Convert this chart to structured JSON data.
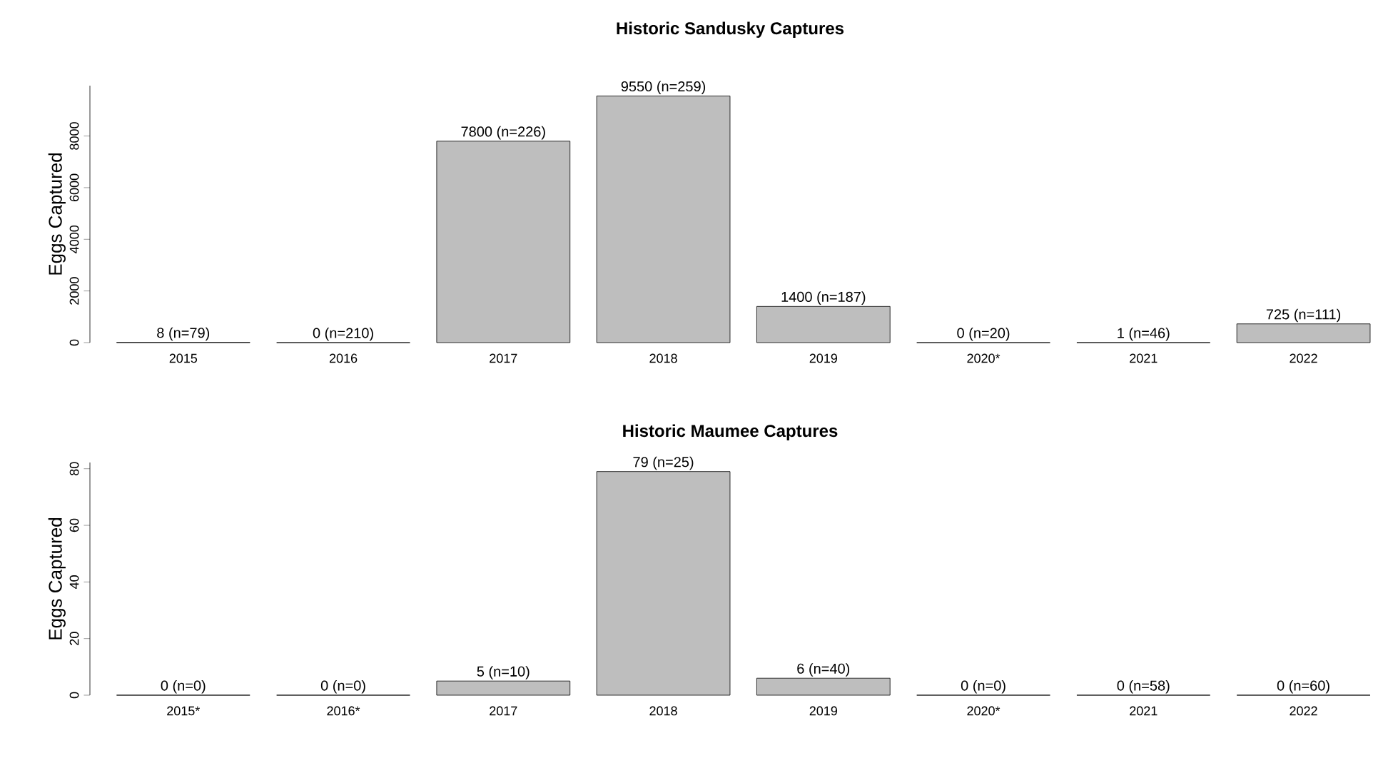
{
  "chart_data": [
    {
      "type": "bar",
      "title": "Historic Sandusky Captures",
      "ylabel": "Eggs Captured",
      "color": "#bebebe",
      "categories": [
        "2015",
        "2016",
        "2017",
        "2018",
        "2019",
        "2020*",
        "2021",
        "2022"
      ],
      "values": [
        8,
        0,
        7800,
        9550,
        1400,
        0,
        1,
        725
      ],
      "value_labels": [
        "8   (n=79)",
        "0   (n=210)",
        "7800  (n=226)",
        "9550  (n=259)",
        "1400 (n=187)",
        "0   (n=20)",
        "1   (n=46)",
        "725  (n=111)"
      ],
      "ylim": [
        0,
        9950
      ],
      "yticks": [
        0,
        2000,
        4000,
        6000,
        8000
      ]
    },
    {
      "type": "bar",
      "title": "Historic Maumee Captures",
      "ylabel": "Eggs Captured",
      "color": "#bebebe",
      "categories": [
        "2015*",
        "2016*",
        "2017",
        "2018",
        "2019",
        "2020*",
        "2021",
        "2022"
      ],
      "values": [
        0,
        0,
        5,
        79,
        6,
        0,
        0,
        0
      ],
      "value_labels": [
        "0   (n=0)",
        "0 (n=0)",
        "5  (n=10)",
        "79 (n=25)",
        "6   (n=40)",
        "0 (n=0)",
        "0  (n=58)",
        "0  (n=60)"
      ],
      "ylim": [
        0,
        82.2
      ],
      "yticks": [
        0,
        20,
        40,
        60,
        80
      ]
    }
  ]
}
